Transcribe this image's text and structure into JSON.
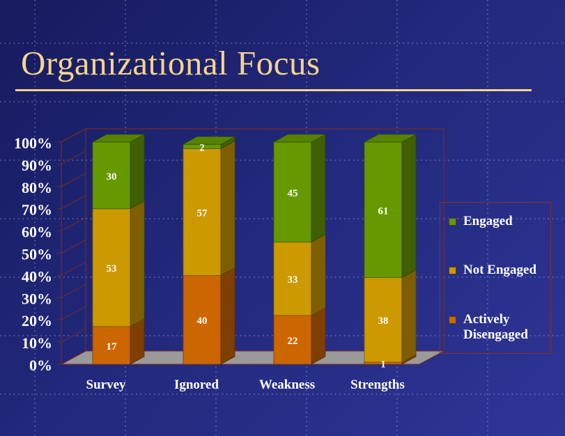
{
  "title": "Organizational Focus",
  "chart_data": {
    "type": "bar",
    "stacked": true,
    "percent_stacked": true,
    "three_d": true,
    "title": "",
    "xlabel": "",
    "ylabel": "",
    "ylim": [
      0,
      100
    ],
    "ytick_labels": [
      "0%",
      "10%",
      "20%",
      "30%",
      "40%",
      "50%",
      "60%",
      "70%",
      "80%",
      "90%",
      "100%"
    ],
    "categories": [
      "Survey",
      "Ignored",
      "Weakness",
      "Strengths"
    ],
    "series": [
      {
        "name": "Actively Disengaged",
        "values": [
          17,
          40,
          22,
          1
        ],
        "color": "#cc6600"
      },
      {
        "name": "Not Engaged",
        "values": [
          53,
          57,
          33,
          38
        ],
        "color": "#cc9900"
      },
      {
        "name": "Engaged",
        "values": [
          30,
          2,
          45,
          61
        ],
        "color": "#669900"
      }
    ],
    "data_labels": true,
    "legend_position": "right",
    "grid": false
  },
  "legend": {
    "items": [
      {
        "label": "Engaged",
        "color": "#669900"
      },
      {
        "label": "Not Engaged",
        "color": "#cc9900"
      },
      {
        "label": "Actively Disengaged",
        "color": "#cc6600"
      }
    ]
  }
}
